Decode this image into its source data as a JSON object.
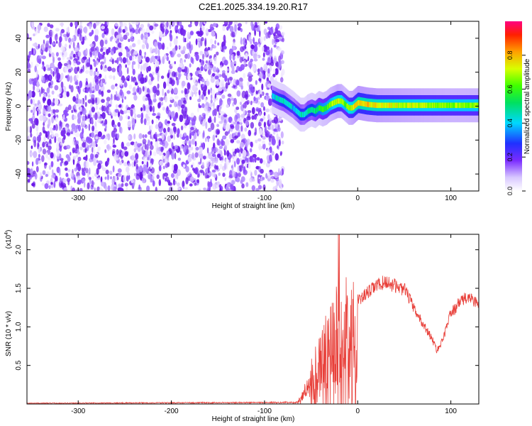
{
  "chart_data": [
    {
      "type": "heatmap",
      "title": "C2E1.2025.334.19.20.R17",
      "xlabel": "Height of straight line (km)",
      "ylabel": "Frequency (Hz)",
      "xlim": [
        -355,
        130
      ],
      "ylim": [
        -50,
        50
      ],
      "xticks": [
        -300,
        -200,
        -100,
        0,
        100
      ],
      "yticks": [
        -40,
        -20,
        0,
        20,
        40
      ],
      "colorbar": {
        "label": "Normalized spectral amplitude",
        "range": [
          0.0,
          1.0
        ],
        "ticks": [
          "0.0",
          "0.2",
          "0.4",
          "0.6",
          "0.8"
        ],
        "tick_values": [
          0.0,
          0.2,
          0.4,
          0.6,
          0.8
        ]
      },
      "noise_region_x": [
        -355,
        -80
      ],
      "ridge": {
        "x": [
          -92,
          -85,
          -80,
          -75,
          -70,
          -66,
          -62,
          -58,
          -54,
          -50,
          -46,
          -42,
          -38,
          -34,
          -30,
          -26,
          -22,
          -18,
          -14,
          -10,
          -6,
          -2,
          0,
          10,
          20,
          30,
          40,
          60,
          80,
          100,
          130
        ],
        "freq": [
          6,
          4,
          3,
          1,
          -1,
          -3,
          -5,
          -5,
          -3,
          -2,
          -3,
          -1,
          -2,
          -1,
          1,
          2,
          3,
          3,
          1,
          -1,
          -1,
          1,
          2,
          1,
          0.5,
          0.5,
          0.5,
          0.5,
          0.5,
          0.5,
          0.5
        ],
        "amplitude": [
          0.45,
          0.5,
          0.55,
          0.5,
          0.45,
          0.5,
          0.55,
          0.5,
          0.6,
          0.55,
          0.6,
          0.65,
          0.7,
          0.72,
          0.75,
          0.8,
          0.85,
          0.8,
          0.75,
          0.8,
          0.85,
          0.9,
          0.92,
          0.9,
          0.88,
          0.86,
          0.85,
          0.82,
          0.8,
          0.78,
          0.78
        ]
      }
    },
    {
      "type": "line",
      "xlabel": "Height of straight line (km)",
      "ylabel": "SNR (10 * v/v)",
      "multiplier": "(x10",
      "multiplier_exp": "4",
      "multiplier_close": ")",
      "xlim": [
        -355,
        130
      ],
      "ylim": [
        0,
        2.2
      ],
      "xticks": [
        -300,
        -200,
        -100,
        0,
        100
      ],
      "yticks": [
        0.5,
        1.0,
        1.5,
        2.0
      ],
      "ytick_labels": [
        "0.5",
        "1.0",
        "1.5",
        "2.0"
      ],
      "series": [
        {
          "name": "SNR",
          "color": "#e8403a",
          "envelope_x": [
            -355,
            -65,
            -60,
            -55,
            -50,
            -45,
            -40,
            -35,
            -30,
            -25,
            -20,
            -15,
            -10,
            -5,
            0,
            10,
            20,
            30,
            40,
            50,
            55,
            60,
            70,
            80,
            85,
            90,
            95,
            100,
            105,
            110,
            120,
            130
          ],
          "envelope_y": [
            0.01,
            0.02,
            0.1,
            0.25,
            0.4,
            0.6,
            0.75,
            0.85,
            0.95,
            1.05,
            1.15,
            1.2,
            1.25,
            1.3,
            1.35,
            1.45,
            1.55,
            1.6,
            1.55,
            1.5,
            1.4,
            1.25,
            1.05,
            0.85,
            0.7,
            0.8,
            1.0,
            1.2,
            1.25,
            1.35,
            1.4,
            1.3
          ]
        }
      ]
    }
  ]
}
